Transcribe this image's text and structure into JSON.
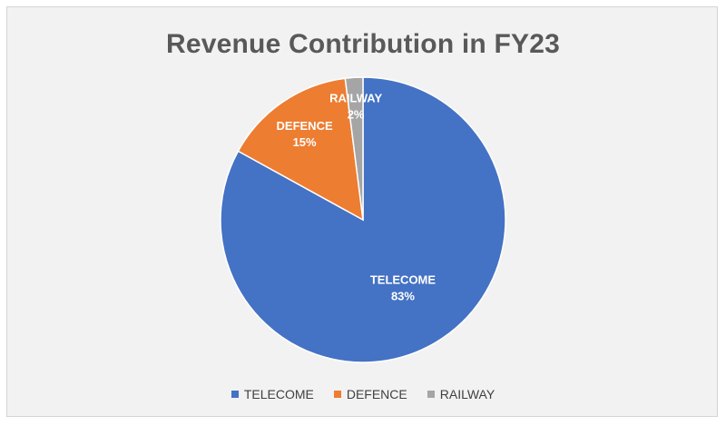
{
  "chart_data": {
    "type": "pie",
    "title": "Revenue Contribution in FY23",
    "slices": [
      {
        "label": "TELECOME",
        "value": 83,
        "value_label": "83%",
        "color": "#4472c4"
      },
      {
        "label": "DEFENCE",
        "value": 15,
        "value_label": "15%",
        "color": "#ed7d31"
      },
      {
        "label": "RAILWAY",
        "value": 2,
        "value_label": "2%",
        "color": "#a5a5a5"
      }
    ],
    "legend_position": "bottom",
    "data_labels": "inside, white, category and percent"
  }
}
